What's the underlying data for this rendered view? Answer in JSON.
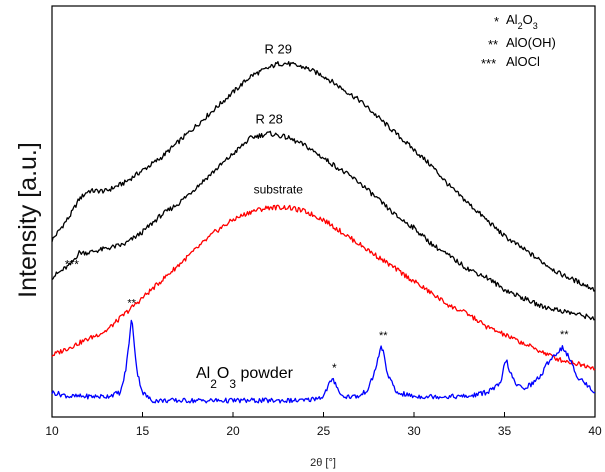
{
  "chart_data": {
    "type": "line",
    "title": "",
    "xlabel": "2θ [°]",
    "ylabel": "Intensity [a.u.]",
    "xlim": [
      10,
      40
    ],
    "xticks": [
      10,
      15,
      20,
      25,
      30,
      35,
      40
    ],
    "ylim": [
      0,
      1
    ],
    "grid": false,
    "legend": {
      "position": "top-right",
      "entries": [
        {
          "marker": "*",
          "text": "Al2O3"
        },
        {
          "marker": "**",
          "text": "AlO(OH)"
        },
        {
          "marker": "***",
          "text": "AlOCl"
        }
      ]
    },
    "colors": {
      "R 29": "#000000",
      "R 28": "#000000",
      "substrate": "#ff0000",
      "Al2O3 powder": "#0000ff"
    },
    "series": [
      {
        "name": "R 29",
        "x": [
          10,
          11,
          11.5,
          12,
          13,
          14,
          15,
          16,
          17,
          18,
          19,
          20,
          21,
          22,
          22.5,
          23,
          24,
          25,
          26,
          27,
          28,
          29,
          30,
          31,
          32,
          33,
          34,
          35,
          36,
          37,
          38,
          39,
          40
        ],
        "y": [
          0.43,
          0.49,
          0.53,
          0.55,
          0.55,
          0.57,
          0.6,
          0.63,
          0.67,
          0.71,
          0.75,
          0.79,
          0.83,
          0.85,
          0.86,
          0.86,
          0.85,
          0.83,
          0.8,
          0.77,
          0.73,
          0.69,
          0.65,
          0.61,
          0.56,
          0.52,
          0.48,
          0.44,
          0.41,
          0.38,
          0.35,
          0.33,
          0.31
        ]
      },
      {
        "name": "R 28",
        "x": [
          10,
          11,
          11.5,
          12,
          13,
          14,
          15,
          16,
          17,
          18,
          19,
          20,
          21,
          22,
          23,
          24,
          25,
          26,
          27,
          28,
          29,
          30,
          31,
          32,
          33,
          34,
          35,
          36,
          37,
          38,
          39,
          40
        ],
        "y": [
          0.34,
          0.37,
          0.4,
          0.4,
          0.41,
          0.42,
          0.45,
          0.49,
          0.52,
          0.56,
          0.6,
          0.64,
          0.68,
          0.69,
          0.68,
          0.66,
          0.63,
          0.6,
          0.57,
          0.53,
          0.49,
          0.46,
          0.42,
          0.39,
          0.36,
          0.34,
          0.31,
          0.29,
          0.27,
          0.26,
          0.25,
          0.24
        ]
      },
      {
        "name": "substrate",
        "x": [
          10,
          11,
          12,
          13,
          14,
          15,
          16,
          17,
          18,
          19,
          20,
          21,
          22,
          23,
          24,
          25,
          26,
          27,
          28,
          29,
          30,
          31,
          32,
          33,
          34,
          35,
          36,
          37,
          38,
          39,
          40
        ],
        "y": [
          0.15,
          0.17,
          0.19,
          0.21,
          0.25,
          0.29,
          0.33,
          0.37,
          0.41,
          0.45,
          0.48,
          0.5,
          0.51,
          0.51,
          0.5,
          0.48,
          0.45,
          0.42,
          0.39,
          0.36,
          0.33,
          0.3,
          0.27,
          0.25,
          0.22,
          0.2,
          0.18,
          0.16,
          0.14,
          0.13,
          0.12
        ]
      },
      {
        "name": "Al2O3 powder",
        "x": [
          10,
          11,
          12,
          13,
          13.8,
          14.1,
          14.3,
          14.4,
          14.5,
          14.7,
          15,
          15.5,
          16,
          17,
          18,
          19,
          20,
          21,
          22,
          23,
          24,
          25,
          25.3,
          25.5,
          25.7,
          26,
          26.5,
          27,
          27.5,
          27.9,
          28.1,
          28.2,
          28.3,
          28.5,
          29,
          30,
          31,
          32,
          33,
          34,
          34.8,
          35,
          35.1,
          35.3,
          35.6,
          36,
          36.5,
          37,
          37.5,
          38,
          38.2,
          38.5,
          39,
          39.5,
          40
        ],
        "y": [
          0.06,
          0.05,
          0.05,
          0.05,
          0.06,
          0.12,
          0.2,
          0.24,
          0.2,
          0.11,
          0.06,
          0.04,
          0.04,
          0.04,
          0.04,
          0.04,
          0.04,
          0.04,
          0.04,
          0.04,
          0.04,
          0.05,
          0.08,
          0.09,
          0.08,
          0.05,
          0.05,
          0.05,
          0.07,
          0.12,
          0.16,
          0.17,
          0.16,
          0.11,
          0.06,
          0.05,
          0.05,
          0.05,
          0.05,
          0.06,
          0.08,
          0.13,
          0.14,
          0.11,
          0.08,
          0.07,
          0.08,
          0.1,
          0.14,
          0.16,
          0.17,
          0.15,
          0.1,
          0.08,
          0.06
        ]
      }
    ],
    "annotations": [
      {
        "text": "R 29",
        "x": 22.5
      },
      {
        "text": "R 28",
        "x": 22
      },
      {
        "text": "substrate",
        "x": 22.5
      },
      {
        "text": "***",
        "x": 11.1
      },
      {
        "text": "**",
        "x": 14.4
      },
      {
        "text": "*",
        "x": 25.6
      },
      {
        "text": "**",
        "x": 28.3
      },
      {
        "text": "**",
        "x": 38.3
      }
    ],
    "powder_label": {
      "text_main": "Al",
      "sub1": "2",
      "mid": "O",
      "sub2": "3",
      "rest": " powder"
    }
  }
}
